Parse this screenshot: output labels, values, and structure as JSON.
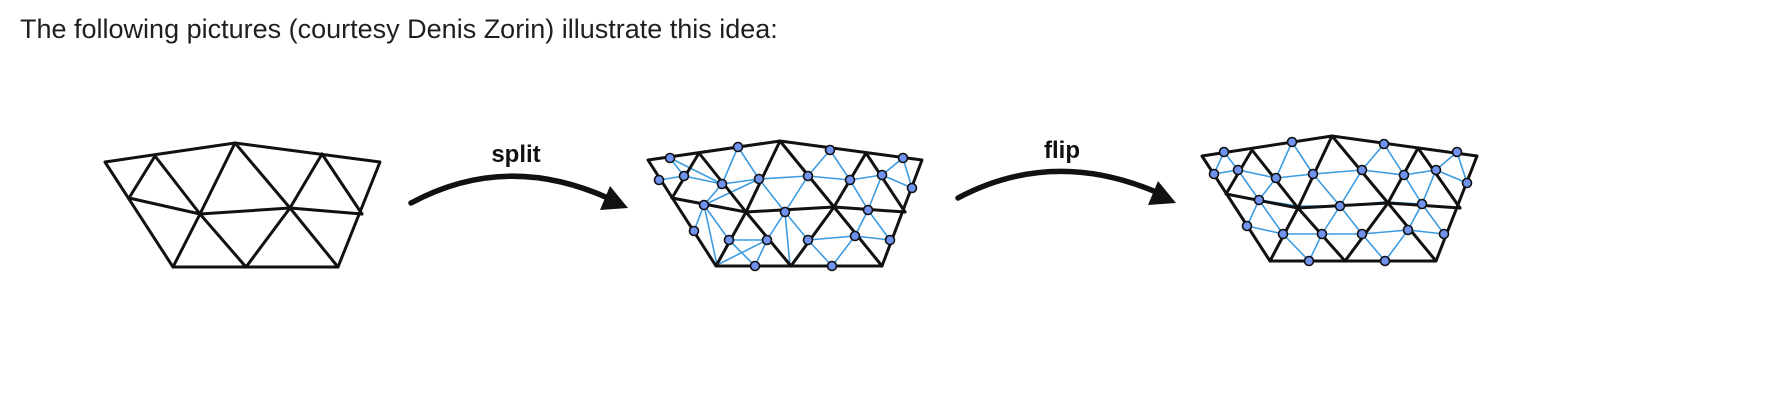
{
  "intro_text": "The following pictures (courtesy Denis Zorin) illustrate this idea:",
  "operations": {
    "split_label": "split",
    "flip_label": "flip"
  },
  "colors": {
    "mesh_edges": "#111111",
    "new_edges": "#3d9be0",
    "new_vertices": "#6f93ee"
  }
}
